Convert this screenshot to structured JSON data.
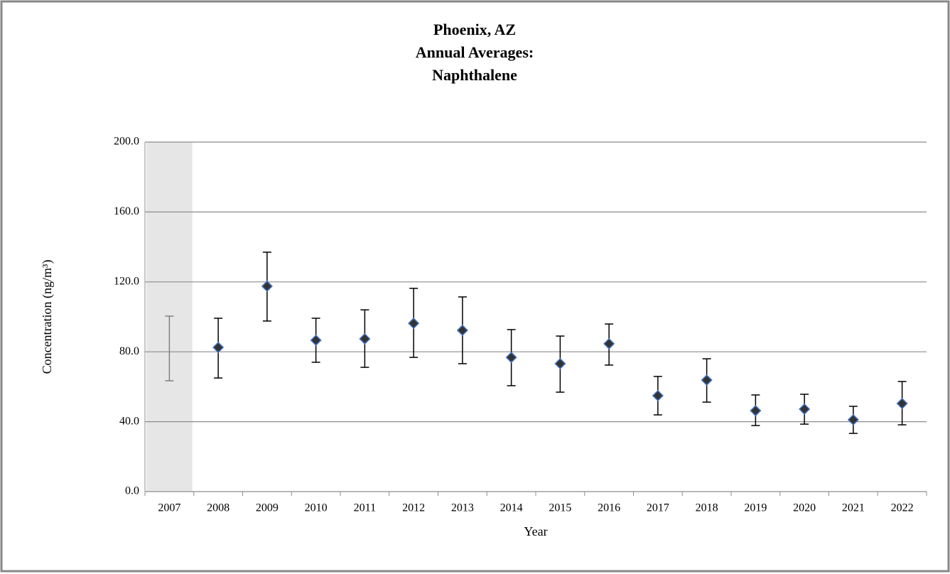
{
  "chart_data": {
    "type": "scatter",
    "title": [
      "Phoenix, AZ",
      "Annual Averages:",
      "Naphthalene"
    ],
    "x_label": "Year",
    "y_label": "Concentration (ng/m³)",
    "categories": [
      "2007",
      "2008",
      "2009",
      "2010",
      "2011",
      "2012",
      "2013",
      "2014",
      "2015",
      "2016",
      "2017",
      "2018",
      "2019",
      "2020",
      "2021",
      "2022"
    ],
    "values": [
      null,
      82.5,
      117.5,
      86.6,
      87.4,
      96.3,
      92.3,
      76.8,
      73.2,
      84.6,
      54.9,
      63.8,
      46.3,
      47.2,
      41.1,
      50.4
    ],
    "lower": [
      63.4,
      65.0,
      97.6,
      74.0,
      71.1,
      76.8,
      73.2,
      60.6,
      56.9,
      72.4,
      43.9,
      51.2,
      37.8,
      38.6,
      33.3,
      38.2
    ],
    "upper": [
      100.4,
      99.2,
      137.0,
      99.2,
      104.0,
      116.3,
      111.4,
      92.7,
      89.0,
      95.9,
      65.9,
      76.0,
      55.3,
      55.7,
      48.8,
      63.0
    ],
    "color": "#333333",
    "marker_edge_color": "#4472c4",
    "error_color": "#000000",
    "shaded_error_color": "#808080",
    "shaded_categories": [
      "2007"
    ],
    "shade_color": "#e6e6e6",
    "ylim": [
      0,
      200
    ],
    "yticks": [
      {
        "value": 0,
        "label": "0.0"
      },
      {
        "value": 40,
        "label": "40.0"
      },
      {
        "value": 80,
        "label": "80.0"
      },
      {
        "value": 120,
        "label": "120.0"
      },
      {
        "value": 160,
        "label": "160.0"
      },
      {
        "value": 200,
        "label": "200.0"
      }
    ],
    "grid": true
  }
}
